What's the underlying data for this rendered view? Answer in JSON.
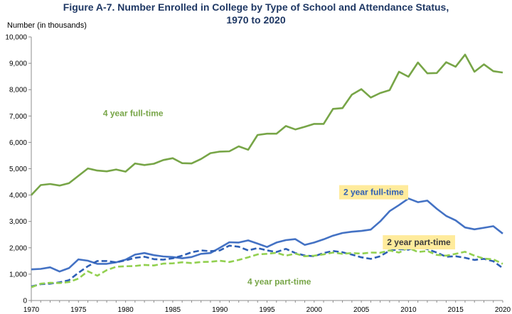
{
  "chart_data": {
    "type": "line",
    "title": "Figure A-7. Number Enrolled in College by Type of School and Attendance Status,",
    "subtitle": "1970 to 2020",
    "ylabel": "Number (in thousands)",
    "xlabel": "",
    "ylim": [
      0,
      10000
    ],
    "xlim": [
      1970,
      2020
    ],
    "yticks": [
      0,
      1000,
      2000,
      3000,
      4000,
      5000,
      6000,
      7000,
      8000,
      9000,
      10000
    ],
    "ytick_labels": [
      "0",
      "1,000",
      "2,000",
      "3,000",
      "4,000",
      "5,000",
      "6,000",
      "7,000",
      "8,000",
      "9,000",
      "10,000"
    ],
    "xticks": [
      1970,
      1975,
      1980,
      1985,
      1990,
      1995,
      2000,
      2005,
      2010,
      2015,
      2020
    ],
    "xtick_labels": [
      "1970",
      "1975",
      "1980",
      "1985",
      "1990",
      "1995",
      "2000",
      "2005",
      "2010",
      "2015",
      "2020"
    ],
    "grid": false,
    "x": [
      1970,
      1971,
      1972,
      1973,
      1974,
      1975,
      1976,
      1977,
      1978,
      1979,
      1980,
      1981,
      1982,
      1983,
      1984,
      1985,
      1986,
      1987,
      1988,
      1989,
      1990,
      1991,
      1992,
      1993,
      1994,
      1995,
      1996,
      1997,
      1998,
      1999,
      2000,
      2001,
      2002,
      2003,
      2004,
      2005,
      2006,
      2007,
      2008,
      2009,
      2010,
      2011,
      2012,
      2013,
      2014,
      2015,
      2016,
      2017,
      2018,
      2019,
      2020
    ],
    "series": [
      {
        "name": "4 year full-time",
        "color": "#77a547",
        "style": "solid",
        "values": [
          4000,
          4380,
          4420,
          4360,
          4450,
          4730,
          5010,
          4930,
          4900,
          4970,
          4890,
          5200,
          5140,
          5190,
          5330,
          5400,
          5210,
          5200,
          5370,
          5590,
          5650,
          5660,
          5850,
          5720,
          6280,
          6330,
          6330,
          6620,
          6490,
          6590,
          6700,
          6700,
          7270,
          7300,
          7810,
          8020,
          7700,
          7870,
          7980,
          8680,
          8490,
          9030,
          8620,
          8630,
          9040,
          8870,
          9330,
          8680,
          8960,
          8700,
          8650
        ]
      },
      {
        "name": "2 year full-time",
        "color": "#4472c4",
        "style": "solid",
        "values": [
          1180,
          1200,
          1260,
          1100,
          1230,
          1560,
          1510,
          1390,
          1390,
          1450,
          1550,
          1740,
          1800,
          1720,
          1670,
          1650,
          1600,
          1650,
          1770,
          1800,
          2000,
          2210,
          2200,
          2280,
          2160,
          2030,
          2200,
          2290,
          2330,
          2110,
          2200,
          2320,
          2460,
          2560,
          2610,
          2640,
          2690,
          3000,
          3390,
          3620,
          3870,
          3730,
          3790,
          3480,
          3210,
          3040,
          2770,
          2700,
          2760,
          2820,
          2540
        ]
      },
      {
        "name": "2 year part-time",
        "color": "#2e5fb5",
        "style": "dashed",
        "values": [
          530,
          620,
          640,
          690,
          770,
          1050,
          1300,
          1500,
          1500,
          1450,
          1520,
          1620,
          1660,
          1570,
          1550,
          1600,
          1700,
          1830,
          1900,
          1870,
          1900,
          2080,
          2040,
          1900,
          1990,
          1900,
          1840,
          1960,
          1800,
          1710,
          1680,
          1800,
          1880,
          1830,
          1740,
          1640,
          1580,
          1680,
          1890,
          1950,
          1930,
          2060,
          1950,
          1820,
          1660,
          1680,
          1620,
          1540,
          1580,
          1490,
          1230
        ]
      },
      {
        "name": "4 year part-time",
        "color": "#92d050",
        "style": "dashed",
        "values": [
          500,
          640,
          670,
          660,
          700,
          830,
          1110,
          940,
          1150,
          1280,
          1300,
          1310,
          1350,
          1330,
          1400,
          1410,
          1450,
          1420,
          1460,
          1470,
          1510,
          1460,
          1540,
          1640,
          1750,
          1770,
          1810,
          1700,
          1780,
          1680,
          1700,
          1750,
          1820,
          1770,
          1800,
          1780,
          1820,
          1810,
          1900,
          1820,
          2000,
          1840,
          1880,
          1730,
          1700,
          1770,
          1850,
          1700,
          1590,
          1560,
          1390
        ]
      }
    ],
    "annotations": [
      {
        "text": "4 year full-time",
        "x": 1980.8,
        "y": 7000,
        "color": "#77a547",
        "highlight": false
      },
      {
        "text": "2 year full-time",
        "x": 2006.3,
        "y": 4000,
        "color": "#2e5fb5",
        "highlight": true
      },
      {
        "text": "2 year part-time",
        "x": 2011.1,
        "y": 2100,
        "color": "#3a3a3a",
        "highlight": true
      },
      {
        "text": "4 year part-time",
        "x": 1996.3,
        "y": 600,
        "color": "#77a547",
        "highlight": false
      }
    ],
    "highlight_color": "#ffeb9c"
  }
}
